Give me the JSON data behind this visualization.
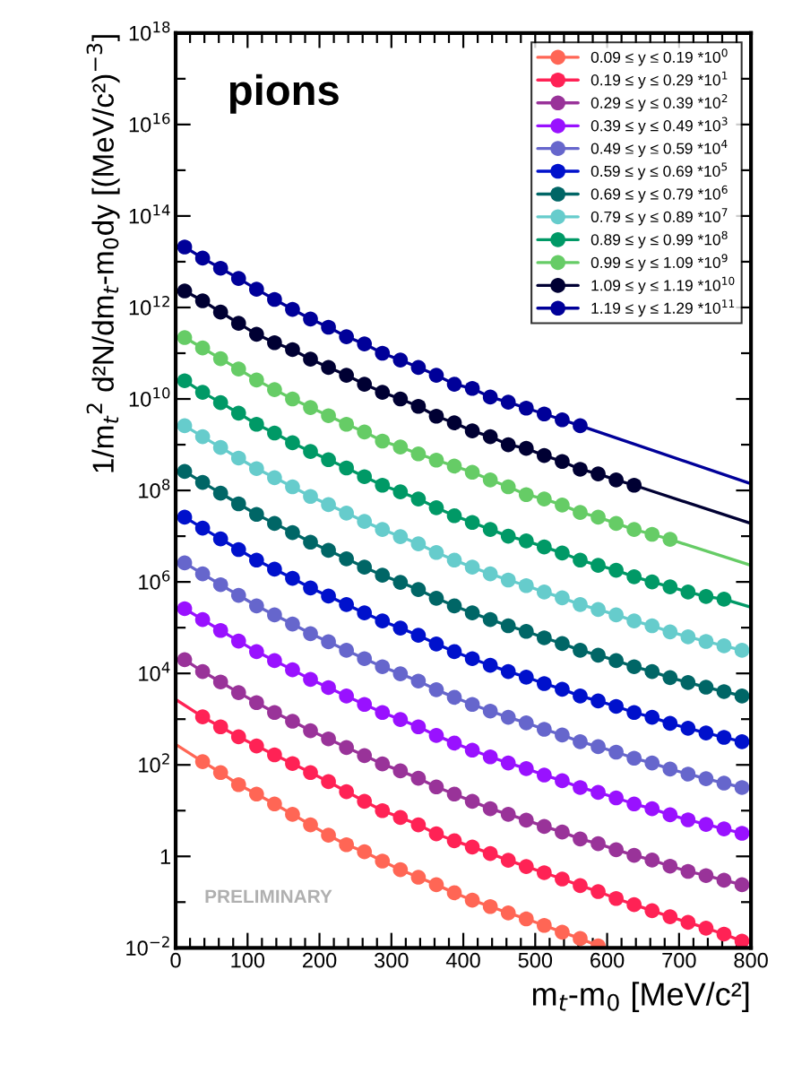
{
  "chart_data": {
    "type": "line",
    "xlabel": "m$_{t}$-m$_{0}$ [MeV/c²]",
    "ylabel": "1/m$_{t}$$^{2}$ d²N/dm$_{t}$-m$_{0}$dy [(MeV/c²)$^{−3}$]",
    "annotations": [
      "pions",
      "PRELIMINARY"
    ],
    "log": "y",
    "grid": false,
    "legend": "top right",
    "marker": "circle",
    "line_style": "solid",
    "xlim": [
      0,
      800
    ],
    "xticks": [
      0,
      100,
      200,
      300,
      400,
      500,
      600,
      700,
      800
    ],
    "ylim": [
      0.01,
      1e+18
    ],
    "yticks": [
      {
        "value": 0.01,
        "label": "10$^{−2}$"
      },
      1,
      {
        "value": 100,
        "label": "10$^{2}$"
      },
      {
        "value": 10000.0,
        "label": "10$^{4}$"
      },
      {
        "value": 1000000.0,
        "label": "10$^{6}$"
      },
      {
        "value": 100000000.0,
        "label": "10$^{8}$"
      },
      {
        "value": 10000000000.0,
        "label": "10$^{10}$"
      },
      {
        "value": 1000000000000.0,
        "label": "10$^{12}$"
      },
      {
        "value": 100000000000000.0,
        "label": "10$^{14}$"
      },
      {
        "value": 1e+16,
        "label": "10$^{16}$"
      },
      {
        "value": 1e+18,
        "label": "10$^{18}$"
      }
    ],
    "series": [
      {
        "name": "0.09 ≤ y ≤ 0.19 *10$^{0}$",
        "color": "#ff6655",
        "x": [
          37.5,
          62.5,
          87.5,
          112.5,
          137.5,
          162.5,
          187.5,
          212.5,
          237.5,
          262.5,
          287.5,
          312.5,
          337.5,
          362.5,
          387.5,
          412.5,
          437.5,
          462.5,
          487.5,
          512.5,
          537.5,
          562.5,
          587.5
        ],
        "values": [
          118,
          68,
          37,
          23,
          14,
          8.3,
          4.9,
          2.9,
          1.8,
          1.26,
          0.79,
          0.51,
          0.35,
          0.24,
          0.16,
          0.11,
          0.08,
          0.058,
          0.043,
          0.031,
          0.022,
          0.016,
          0.011
        ]
      },
      {
        "type": "line",
        "marker": "none",
        "color": "#ff6655",
        "x": [
          0,
          37.5
        ],
        "values": [
          280,
          118
        ]
      },
      {
        "name": "0.19 ≤ y ≤ 0.29 *10$^{1}$",
        "color": "#ff2255",
        "x": [
          37.5,
          62.5,
          87.5,
          112.5,
          137.5,
          162.5,
          187.5,
          212.5,
          237.5,
          262.5,
          287.5,
          312.5,
          337.5,
          362.5,
          387.5,
          412.5,
          437.5,
          462.5,
          487.5,
          512.5,
          537.5,
          562.5,
          587.5,
          612.5,
          637.5,
          662.5,
          687.5,
          712.5,
          737.5,
          762.5,
          787.5
        ],
        "values": [
          1120,
          680,
          410,
          260,
          166,
          107,
          68,
          43,
          26,
          16,
          10,
          7.1,
          4.9,
          3.1,
          2.2,
          1.6,
          1.15,
          0.82,
          0.6,
          0.44,
          0.32,
          0.23,
          0.17,
          0.12,
          0.088,
          0.065,
          0.048,
          0.036,
          0.027,
          0.02,
          0.014
        ]
      },
      {
        "type": "line",
        "marker": "none",
        "color": "#ff2255",
        "x": [
          0,
          37.5
        ],
        "values": [
          2700,
          1120
        ]
      },
      {
        "name": "0.29 ≤ y ≤ 0.39 *10$^{2}$",
        "color": "#993399",
        "x": [
          12.5,
          37.5,
          62.5,
          87.5,
          112.5,
          137.5,
          162.5,
          187.5,
          212.5,
          237.5,
          262.5,
          287.5,
          312.5,
          337.5,
          362.5,
          387.5,
          412.5,
          437.5,
          462.5,
          487.5,
          512.5,
          537.5,
          562.5,
          587.5,
          612.5,
          637.5,
          662.5,
          687.5,
          712.5,
          737.5,
          762.5,
          787.5
        ],
        "values": [
          20000.0,
          11000.0,
          6500,
          3800,
          2300,
          1400,
          900,
          560,
          370,
          240,
          160,
          105,
          74,
          51,
          33,
          23,
          16,
          11,
          8.3,
          6.2,
          4.5,
          3.4,
          2.4,
          1.9,
          1.4,
          1.05,
          0.83,
          0.61,
          0.47,
          0.38,
          0.3,
          0.24
        ]
      },
      {
        "name": "0.39 ≤ y ≤ 0.49 *10$^{3}$",
        "color": "#9911ff",
        "x": [
          12.5,
          37.5,
          62.5,
          87.5,
          112.5,
          137.5,
          162.5,
          187.5,
          212.5,
          237.5,
          262.5,
          287.5,
          312.5,
          337.5,
          362.5,
          387.5,
          412.5,
          437.5,
          462.5,
          487.5,
          512.5,
          537.5,
          562.5,
          587.5,
          612.5,
          637.5,
          662.5,
          687.5,
          712.5,
          737.5,
          762.5,
          787.5
        ],
        "values": [
          260000.0,
          150000.0,
          87000.0,
          51000.0,
          30000.0,
          19000.0,
          12000.0,
          7400,
          4900,
          3200,
          2100,
          1400,
          980,
          680,
          440,
          300,
          210,
          150,
          110,
          83,
          60,
          45,
          32,
          25,
          19,
          14,
          11,
          8.1,
          6.3,
          5.0,
          4.0,
          3.2
        ]
      },
      {
        "name": "0.49 ≤ y ≤ 0.59 *10$^{4}$",
        "color": "#6666cc",
        "x": [
          12.5,
          37.5,
          62.5,
          87.5,
          112.5,
          137.5,
          162.5,
          187.5,
          212.5,
          237.5,
          262.5,
          287.5,
          312.5,
          337.5,
          362.5,
          387.5,
          412.5,
          437.5,
          462.5,
          487.5,
          512.5,
          537.5,
          562.5,
          587.5,
          612.5,
          637.5,
          662.5,
          687.5,
          712.5,
          737.5,
          762.5,
          787.5
        ],
        "values": [
          2600000.0,
          1500000.0,
          870000.0,
          510000.0,
          300000.0,
          190000.0,
          120000.0,
          74000.0,
          49000.0,
          32000.0,
          21000.0,
          14000.0,
          9800,
          6800,
          4400,
          3000,
          2100,
          1500,
          1100,
          830,
          600,
          450,
          320,
          250,
          190,
          140,
          110,
          81,
          63,
          50,
          40,
          32
        ]
      },
      {
        "name": "0.59 ≤ y ≤ 0.69 *10$^{5}$",
        "color": "#0011cc",
        "x": [
          12.5,
          37.5,
          62.5,
          87.5,
          112.5,
          137.5,
          162.5,
          187.5,
          212.5,
          237.5,
          262.5,
          287.5,
          312.5,
          337.5,
          362.5,
          387.5,
          412.5,
          437.5,
          462.5,
          487.5,
          512.5,
          537.5,
          562.5,
          587.5,
          612.5,
          637.5,
          662.5,
          687.5,
          712.5,
          737.5,
          762.5,
          787.5
        ],
        "values": [
          26000000.0,
          15000000.0,
          8700000.0,
          5100000.0,
          3000000.0,
          1900000.0,
          1200000.0,
          740000.0,
          490000.0,
          320000.0,
          210000.0,
          140000.0,
          98000.0,
          68000.0,
          44000.0,
          30000.0,
          21000.0,
          15000.0,
          11000.0,
          8300,
          6000,
          4500,
          3200,
          2500,
          1900,
          1400,
          1100,
          810,
          630,
          500,
          400,
          320
        ]
      },
      {
        "name": "0.69 ≤ y ≤ 0.79 *10$^{6}$",
        "color": "#006666",
        "x": [
          12.5,
          37.5,
          62.5,
          87.5,
          112.5,
          137.5,
          162.5,
          187.5,
          212.5,
          237.5,
          262.5,
          287.5,
          312.5,
          337.5,
          362.5,
          387.5,
          412.5,
          437.5,
          462.5,
          487.5,
          512.5,
          537.5,
          562.5,
          587.5,
          612.5,
          637.5,
          662.5,
          687.5,
          712.5,
          737.5,
          762.5,
          787.5
        ],
        "values": [
          260000000.0,
          150000000.0,
          87000000.0,
          51000000.0,
          30000000.0,
          19000000.0,
          12000000.0,
          7400000.0,
          4900000.0,
          3200000.0,
          2100000.0,
          1400000.0,
          980000.0,
          680000.0,
          440000.0,
          300000.0,
          210000.0,
          150000.0,
          110000.0,
          83000.0,
          60000.0,
          45000.0,
          32000.0,
          25000.0,
          19000.0,
          14000.0,
          11000.0,
          8100,
          6300,
          5000,
          4000,
          3200
        ]
      },
      {
        "name": "0.79 ≤ y ≤ 0.89 *10$^{7}$",
        "color": "#66cccc",
        "x": [
          12.5,
          37.5,
          62.5,
          87.5,
          112.5,
          137.5,
          162.5,
          187.5,
          212.5,
          237.5,
          262.5,
          287.5,
          312.5,
          337.5,
          362.5,
          387.5,
          412.5,
          437.5,
          462.5,
          487.5,
          512.5,
          537.5,
          562.5,
          587.5,
          612.5,
          637.5,
          662.5,
          687.5,
          712.5,
          737.5,
          762.5,
          787.5
        ],
        "values": [
          2600000000.0,
          1500000000.0,
          870000000.0,
          510000000.0,
          300000000.0,
          190000000.0,
          120000000.0,
          74000000.0,
          49000000.0,
          32000000.0,
          21000000.0,
          14000000.0,
          9800000.0,
          6800000.0,
          4400000.0,
          3000000.0,
          2100000.0,
          1500000.0,
          1100000.0,
          830000.0,
          600000.0,
          450000.0,
          320000.0,
          250000.0,
          190000.0,
          140000.0,
          110000.0,
          81000.0,
          63000.0,
          50000.0,
          40000.0,
          32000.0
        ]
      },
      {
        "name": "0.89 ≤ y ≤ 0.99 *10$^{8}$",
        "color": "#009966",
        "x": [
          12.5,
          37.5,
          62.5,
          87.5,
          112.5,
          137.5,
          162.5,
          187.5,
          212.5,
          237.5,
          262.5,
          287.5,
          312.5,
          337.5,
          362.5,
          387.5,
          412.5,
          437.5,
          462.5,
          487.5,
          512.5,
          537.5,
          562.5,
          587.5,
          612.5,
          637.5,
          662.5,
          687.5,
          712.5,
          737.5,
          762.5
        ],
        "values": [
          25000000000.0,
          14000000000.0,
          8300000000.0,
          4900000000.0,
          2800000000.0,
          1800000000.0,
          1100000000.0,
          710000000.0,
          470000000.0,
          310000000.0,
          200000000.0,
          130000000.0,
          93000000.0,
          65000000.0,
          42000000.0,
          28000000.0,
          20000000.0,
          14000000.0,
          10000000.0,
          7900000.0,
          5800000.0,
          4300000.0,
          3000000.0,
          2300000.0,
          1800000.0,
          1300000.0,
          1000000.0,
          780000.0,
          600000.0,
          480000.0,
          420000.0
        ]
      },
      {
        "type": "line",
        "marker": "none",
        "color": "#009966",
        "x": [
          762.5,
          800
        ],
        "values": [
          420000.0,
          280000.0
        ]
      },
      {
        "name": "0.99 ≤ y ≤ 1.09 *10$^{9}$",
        "color": "#66cc66",
        "x": [
          12.5,
          37.5,
          62.5,
          87.5,
          112.5,
          137.5,
          162.5,
          187.5,
          212.5,
          237.5,
          262.5,
          287.5,
          312.5,
          337.5,
          362.5,
          387.5,
          412.5,
          437.5,
          462.5,
          487.5,
          512.5,
          537.5,
          562.5,
          587.5,
          612.5,
          637.5,
          662.5,
          687.5
        ],
        "values": [
          220000000000.0,
          130000000000.0,
          76000000000.0,
          45000000000.0,
          26000000000.0,
          16000000000.0,
          10000000000.0,
          6500000000.0,
          4300000000.0,
          2800000000.0,
          1900000000.0,
          1200000000.0,
          890000000.0,
          630000000.0,
          460000000.0,
          340000000.0,
          250000000.0,
          170000000.0,
          120000000.0,
          81000000.0,
          65000000.0,
          48000000.0,
          33000000.0,
          26000000.0,
          19000000.0,
          14000000.0,
          11000000.0,
          8500000.0
        ]
      },
      {
        "type": "line",
        "marker": "none",
        "color": "#66cc66",
        "x": [
          687.5,
          800
        ],
        "values": [
          8500000.0,
          2300000.0
        ]
      },
      {
        "name": "1.09 ≤ y ≤ 1.19 *10$^{10}$",
        "color": "#000033",
        "x": [
          12.5,
          37.5,
          62.5,
          87.5,
          112.5,
          137.5,
          162.5,
          187.5,
          212.5,
          237.5,
          262.5,
          287.5,
          312.5,
          337.5,
          362.5,
          387.5,
          412.5,
          437.5,
          462.5,
          487.5,
          512.5,
          537.5,
          562.5,
          587.5,
          612.5,
          637.5
        ],
        "values": [
          2300000000000.0,
          1400000000000.0,
          790000000000.0,
          450000000000.0,
          260000000000.0,
          170000000000.0,
          120000000000.0,
          74000000000.0,
          49000000000.0,
          33000000000.0,
          21000000000.0,
          14000000000.0,
          10000000000.0,
          6900000000.0,
          4200000000.0,
          3000000000.0,
          2000000000.0,
          1500000000.0,
          1000000000.0,
          830000000.0,
          580000000.0,
          430000000.0,
          290000000.0,
          230000000.0,
          170000000.0,
          130000000.0
        ]
      },
      {
        "type": "line",
        "marker": "none",
        "color": "#000033",
        "x": [
          637.5,
          800
        ],
        "values": [
          130000000.0,
          19000000.0
        ]
      },
      {
        "name": "1.19 ≤ y ≤ 1.29 *10$^{11}$",
        "color": "#000099",
        "x": [
          12.5,
          37.5,
          62.5,
          87.5,
          112.5,
          137.5,
          162.5,
          187.5,
          212.5,
          237.5,
          262.5,
          287.5,
          312.5,
          337.5,
          362.5,
          387.5,
          412.5,
          437.5,
          462.5,
          487.5,
          512.5,
          537.5,
          562.5
        ],
        "values": [
          21000000000000.0,
          12000000000000.0,
          7200000000000.0,
          4300000000000.0,
          2500000000000.0,
          1500000000000.0,
          910000000000.0,
          560000000000.0,
          370000000000.0,
          230000000000.0,
          160000000000.0,
          100000000000.0,
          71000000000.0,
          49000000000.0,
          33000000000.0,
          21000000000.0,
          17000000000.0,
          11000000000.0,
          8500000000.0,
          6300000000.0,
          4700000000.0,
          3500000000.0,
          2600000000.0
        ]
      },
      {
        "type": "line",
        "marker": "none",
        "color": "#000099",
        "x": [
          562.5,
          800
        ],
        "values": [
          2600000000.0,
          140000000.0
        ]
      }
    ]
  }
}
